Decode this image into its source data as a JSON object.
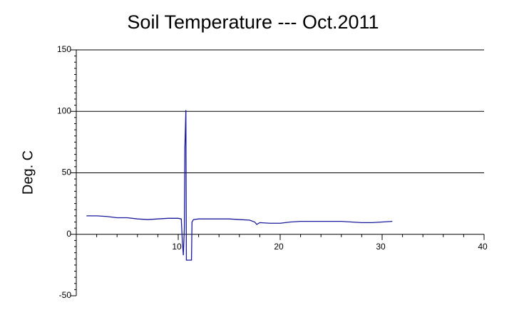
{
  "chart_data": {
    "type": "line",
    "title": "Soil Temperature --- Oct.2011",
    "y_label": "Deg. C",
    "x": [
      1,
      2,
      3,
      4,
      5,
      6,
      7,
      8,
      9,
      10,
      10.3,
      10.4,
      10.5,
      10.6,
      10.65,
      10.75,
      10.8,
      11.3,
      11.35,
      11.5,
      12,
      13,
      14,
      15,
      16,
      17,
      17.5,
      17.7,
      18,
      19,
      20,
      21,
      22,
      23,
      24,
      25,
      26,
      27,
      28,
      29,
      30,
      31
    ],
    "series": [
      {
        "name": "Soil Temperature",
        "color": "#1a1a9c",
        "values": [
          15,
          15,
          14.5,
          13.5,
          13.5,
          12.5,
          12,
          12.5,
          13,
          13,
          12.5,
          -5,
          -17,
          5,
          70,
          101,
          -21,
          -21,
          10,
          12,
          12.5,
          12.5,
          12.5,
          12.5,
          12,
          11.5,
          10,
          8,
          9.5,
          9,
          9,
          10,
          10.5,
          10.5,
          10.5,
          10.5,
          10.5,
          10,
          9.5,
          9.5,
          10,
          10.5
        ]
      }
    ],
    "xlim": [
      0,
      40
    ],
    "xticks": [
      10,
      20,
      30,
      40
    ],
    "ylim": [
      -50,
      150
    ],
    "yticks": [
      -50,
      0,
      50,
      100,
      150
    ],
    "grid": true
  }
}
